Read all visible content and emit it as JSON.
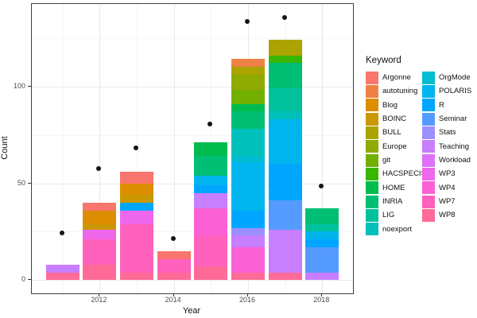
{
  "legend": {
    "title": "Keyword"
  },
  "chart_data": {
    "type": "bar",
    "stacked": true,
    "title": "",
    "xlabel": "Year",
    "ylabel": "Count",
    "legend_position": "right",
    "grid": true,
    "categories": [
      2011,
      2012,
      2013,
      2014,
      2015,
      2016,
      2017,
      2018
    ],
    "series": [
      {
        "name": "Argonne",
        "color": "#F8766D",
        "values": [
          0,
          4,
          6,
          4,
          0,
          0,
          0,
          0
        ]
      },
      {
        "name": "autotuning",
        "color": "#EE8145",
        "values": [
          0,
          0,
          0,
          0,
          0,
          4,
          0,
          0
        ]
      },
      {
        "name": "Blog",
        "color": "#DC8D00",
        "values": [
          0,
          7,
          6,
          0,
          0,
          0,
          0,
          0
        ]
      },
      {
        "name": "BOINC",
        "color": "#CB9700",
        "values": [
          0,
          3,
          4,
          0,
          0,
          0,
          0,
          0
        ]
      },
      {
        "name": "BULL",
        "color": "#ABA300",
        "values": [
          0,
          0,
          0,
          0,
          0,
          4,
          8,
          0
        ]
      },
      {
        "name": "Europe",
        "color": "#8FAA00",
        "values": [
          0,
          0,
          0,
          0,
          0,
          8,
          0,
          0
        ]
      },
      {
        "name": "git",
        "color": "#72B000",
        "values": [
          0,
          0,
          0,
          0,
          0,
          7,
          0,
          0
        ]
      },
      {
        "name": "HACSPECIS",
        "color": "#39B600",
        "values": [
          0,
          0,
          0,
          0,
          0,
          0,
          4,
          0
        ]
      },
      {
        "name": "HOME",
        "color": "#00BB4E",
        "values": [
          0,
          0,
          0,
          0,
          7,
          4,
          0,
          0
        ]
      },
      {
        "name": "INRIA",
        "color": "#00BF74",
        "values": [
          0,
          0,
          0,
          0,
          10,
          9,
          13,
          8
        ]
      },
      {
        "name": "LIG",
        "color": "#00C19C",
        "values": [
          0,
          0,
          0,
          0,
          0,
          0,
          12,
          4
        ]
      },
      {
        "name": "noexport",
        "color": "#00C0BB",
        "values": [
          0,
          0,
          0,
          0,
          0,
          14,
          4,
          0
        ]
      },
      {
        "name": "OrgMode",
        "color": "#00BDD2",
        "values": [
          0,
          0,
          0,
          0,
          0,
          3,
          0,
          0
        ]
      },
      {
        "name": "POLARIS",
        "color": "#00B5EE",
        "values": [
          0,
          0,
          0,
          0,
          5,
          25,
          23,
          4
        ]
      },
      {
        "name": "R",
        "color": "#00A6FF",
        "values": [
          0,
          0,
          4,
          0,
          4,
          9,
          19,
          4
        ]
      },
      {
        "name": "Seminar",
        "color": "#559BFF",
        "values": [
          0,
          0,
          0,
          0,
          0,
          0,
          15,
          13
        ]
      },
      {
        "name": "Stats",
        "color": "#9B8FFF",
        "values": [
          0,
          0,
          0,
          0,
          0,
          4,
          0,
          0
        ]
      },
      {
        "name": "Teaching",
        "color": "#C77EFF",
        "values": [
          4,
          0,
          0,
          0,
          8,
          6,
          22,
          4
        ]
      },
      {
        "name": "Workload",
        "color": "#DC71FA",
        "values": [
          0,
          0,
          0,
          0,
          0,
          0,
          0,
          0
        ]
      },
      {
        "name": "WP3",
        "color": "#EE67EC",
        "values": [
          0,
          5,
          7,
          0,
          0,
          0,
          0,
          0
        ]
      },
      {
        "name": "WP4",
        "color": "#FB61D5",
        "values": [
          0,
          0,
          0,
          0,
          14,
          13,
          0,
          0
        ]
      },
      {
        "name": "WP7",
        "color": "#FF61BD",
        "values": [
          0,
          13,
          25,
          7,
          16,
          0,
          0,
          0
        ]
      },
      {
        "name": "WP8",
        "color": "#FF6B97",
        "values": [
          4,
          8,
          4,
          4,
          7,
          4,
          4,
          0
        ]
      }
    ],
    "bar_totals": [
      8,
      40,
      56,
      15,
      71,
      114,
      124,
      37
    ],
    "points": {
      "name": "yearly-total-dots",
      "color": "#141414",
      "values": [
        24,
        57,
        68,
        21,
        80,
        133,
        135,
        48
      ]
    },
    "x_ticks": [
      2012,
      2014,
      2016,
      2018
    ],
    "x_minor": [
      2011,
      2013,
      2015,
      2017
    ],
    "y_ticks": [
      0,
      50,
      100
    ],
    "y_minor": [
      25,
      75,
      125
    ],
    "xlim": [
      2010.17,
      2018.83
    ],
    "ylim": [
      -6.8,
      142.5
    ]
  }
}
